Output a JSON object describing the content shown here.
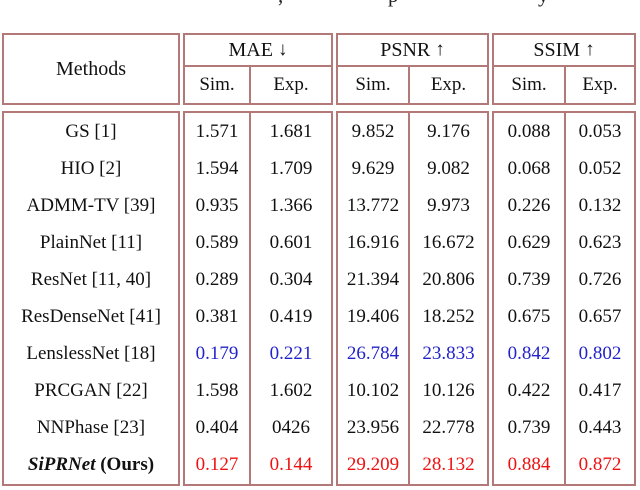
{
  "caption_fragments": {
    "f1": ",",
    "f2": "p",
    "f3": "y"
  },
  "colors": {
    "bd": "#b37878",
    "blue": "#2323cc",
    "red": "#ee1111",
    "text": "#111111"
  },
  "table": {
    "methods_header": "Methods",
    "col_groups": [
      {
        "label": "MAE",
        "arrow": "↓"
      },
      {
        "label": "PSNR",
        "arrow": "↑"
      },
      {
        "label": "SSIM",
        "arrow": "↑"
      }
    ],
    "subheaders": {
      "sim": "Sim.",
      "exp": "Exp."
    },
    "rows": [
      {
        "method": "GS [1]",
        "mae_sim": "1.571",
        "mae_exp": "1.681",
        "psnr_sim": "9.852",
        "psnr_exp": "9.176",
        "ssim_sim": "0.088",
        "ssim_exp": "0.053",
        "highlight": "none"
      },
      {
        "method": "HIO [2]",
        "mae_sim": "1.594",
        "mae_exp": "1.709",
        "psnr_sim": "9.629",
        "psnr_exp": "9.082",
        "ssim_sim": "0.068",
        "ssim_exp": "0.052",
        "highlight": "none"
      },
      {
        "method": "ADMM-TV [39]",
        "mae_sim": "0.935",
        "mae_exp": "1.366",
        "psnr_sim": "13.772",
        "psnr_exp": "9.973",
        "ssim_sim": "0.226",
        "ssim_exp": "0.132",
        "highlight": "none"
      },
      {
        "method": "PlainNet [11]",
        "mae_sim": "0.589",
        "mae_exp": "0.601",
        "psnr_sim": "16.916",
        "psnr_exp": "16.672",
        "ssim_sim": "0.629",
        "ssim_exp": "0.623",
        "highlight": "none"
      },
      {
        "method": "ResNet [11, 40]",
        "mae_sim": "0.289",
        "mae_exp": "0.304",
        "psnr_sim": "21.394",
        "psnr_exp": "20.806",
        "ssim_sim": "0.739",
        "ssim_exp": "0.726",
        "highlight": "none"
      },
      {
        "method": "ResDenseNet [41]",
        "mae_sim": "0.381",
        "mae_exp": "0.419",
        "psnr_sim": "19.406",
        "psnr_exp": "18.252",
        "ssim_sim": "0.675",
        "ssim_exp": "0.657",
        "highlight": "none"
      },
      {
        "method": "LenslessNet [18]",
        "mae_sim": "0.179",
        "mae_exp": "0.221",
        "psnr_sim": "26.784",
        "psnr_exp": "23.833",
        "ssim_sim": "0.842",
        "ssim_exp": "0.802",
        "highlight": "blue"
      },
      {
        "method": "PRCGAN [22]",
        "mae_sim": "1.598",
        "mae_exp": "1.602",
        "psnr_sim": "10.102",
        "psnr_exp": "10.126",
        "ssim_sim": "0.422",
        "ssim_exp": "0.417",
        "highlight": "none"
      },
      {
        "method": "NNPhase [23]",
        "mae_sim": "0.404",
        "mae_exp": "0426",
        "psnr_sim": "23.956",
        "psnr_exp": "22.778",
        "ssim_sim": "0.739",
        "ssim_exp": "0.443",
        "highlight": "none"
      },
      {
        "method_main": "SiPRNet",
        "method_suffix": " (Ours)",
        "mae_sim": "0.127",
        "mae_exp": "0.144",
        "psnr_sim": "29.209",
        "psnr_exp": "28.132",
        "ssim_sim": "0.884",
        "ssim_exp": "0.872",
        "highlight": "red"
      }
    ]
  }
}
